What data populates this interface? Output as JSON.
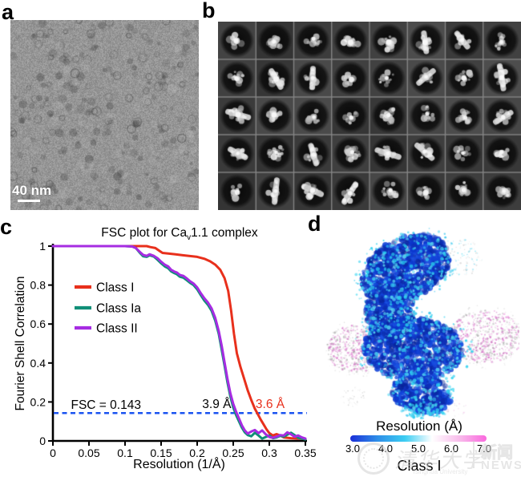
{
  "figure_labels": {
    "a": "a",
    "b": "b",
    "c": "c",
    "d": "d"
  },
  "panel_a": {
    "scale_bar_label": "40 nm"
  },
  "panel_b": {
    "rows": 5,
    "cols": 8
  },
  "panel_d": {
    "colorbar_title": "Resolution (Å)",
    "colorbar_ticks": [
      "3.0",
      "4.0",
      "5.0",
      "6.0",
      "7.0"
    ],
    "colorbar_colors": [
      "#1b2fd8",
      "#2e8ee8",
      "#3ccdf2",
      "#ffffff",
      "#f8bceb",
      "#fa68de"
    ],
    "class_label": "Class I"
  },
  "watermark": {
    "university": "清华大学",
    "university_en": "Tsinghua University",
    "news_cn": "新闻",
    "news_en": "NEWS"
  },
  "chart_data": {
    "type": "line",
    "title_parts": {
      "pre": "FSC plot for Ca",
      "sub": "v",
      "post": "1.1 complex"
    },
    "xlabel": "Resolution (1/Å)",
    "ylabel": "Fourier Shell Correlation",
    "xlim": [
      0,
      0.35
    ],
    "ylim": [
      0,
      1
    ],
    "xticks": [
      0,
      0.05,
      0.1,
      0.15,
      0.2,
      0.25,
      0.3,
      0.35
    ],
    "xtick_labels": [
      "0",
      "0.05",
      "0.1",
      "0.15",
      "0.2",
      "0.25",
      "0.3",
      "0.35"
    ],
    "yticks": [
      0,
      0.2,
      0.4,
      0.6,
      0.8,
      1
    ],
    "ytick_labels": [
      "0",
      "0.2",
      "0.4",
      "0.6",
      "0.8",
      "1"
    ],
    "grid": false,
    "legend_position": "upper-left-inside",
    "threshold": {
      "label": "FSC = 0.143",
      "value": 0.143,
      "color": "#1a53f0",
      "style": "dashed",
      "label_x": 0.025,
      "label_y": 0.165
    },
    "annotations": [
      {
        "text": "3.9 Å",
        "color": "#000000",
        "x": 0.207,
        "y": 0.168
      },
      {
        "text": "3.6 Å",
        "color": "#e8301c",
        "x": 0.281,
        "y": 0.168
      }
    ],
    "series": [
      {
        "name": "Class I",
        "color": "#e8301c",
        "points": [
          [
            0,
            1
          ],
          [
            0.02,
            1
          ],
          [
            0.04,
            1
          ],
          [
            0.06,
            1
          ],
          [
            0.08,
            1
          ],
          [
            0.1,
            1
          ],
          [
            0.12,
            1
          ],
          [
            0.13,
            1
          ],
          [
            0.135,
            0.995
          ],
          [
            0.142,
            0.99
          ],
          [
            0.148,
            0.975
          ],
          [
            0.152,
            0.965
          ],
          [
            0.16,
            0.962
          ],
          [
            0.17,
            0.958
          ],
          [
            0.18,
            0.953
          ],
          [
            0.19,
            0.949
          ],
          [
            0.2,
            0.945
          ],
          [
            0.21,
            0.935
          ],
          [
            0.218,
            0.922
          ],
          [
            0.225,
            0.905
          ],
          [
            0.232,
            0.878
          ],
          [
            0.238,
            0.835
          ],
          [
            0.243,
            0.77
          ],
          [
            0.247,
            0.67
          ],
          [
            0.251,
            0.55
          ],
          [
            0.255,
            0.45
          ],
          [
            0.26,
            0.38
          ],
          [
            0.265,
            0.32
          ],
          [
            0.27,
            0.26
          ],
          [
            0.275,
            0.21
          ],
          [
            0.28,
            0.165
          ],
          [
            0.284,
            0.138
          ],
          [
            0.288,
            0.11
          ],
          [
            0.292,
            0.085
          ],
          [
            0.296,
            0.06
          ],
          [
            0.3,
            0.04
          ],
          [
            0.305,
            0.028
          ],
          [
            0.31,
            0.035
          ],
          [
            0.315,
            0.028
          ],
          [
            0.32,
            0.018
          ],
          [
            0.33,
            0.014
          ],
          [
            0.34,
            0.012
          ],
          [
            0.35,
            0.01
          ]
        ]
      },
      {
        "name": "Class Ia",
        "color": "#108f78",
        "points": [
          [
            0,
            1
          ],
          [
            0.02,
            1
          ],
          [
            0.04,
            1
          ],
          [
            0.06,
            1
          ],
          [
            0.08,
            1
          ],
          [
            0.1,
            1
          ],
          [
            0.11,
            0.998
          ],
          [
            0.115,
            0.99
          ],
          [
            0.12,
            0.968
          ],
          [
            0.125,
            0.948
          ],
          [
            0.13,
            0.945
          ],
          [
            0.134,
            0.953
          ],
          [
            0.14,
            0.946
          ],
          [
            0.145,
            0.93
          ],
          [
            0.15,
            0.912
          ],
          [
            0.155,
            0.896
          ],
          [
            0.16,
            0.886
          ],
          [
            0.164,
            0.87
          ],
          [
            0.168,
            0.862
          ],
          [
            0.172,
            0.855
          ],
          [
            0.176,
            0.843
          ],
          [
            0.181,
            0.838
          ],
          [
            0.186,
            0.824
          ],
          [
            0.19,
            0.812
          ],
          [
            0.195,
            0.8
          ],
          [
            0.2,
            0.778
          ],
          [
            0.205,
            0.748
          ],
          [
            0.21,
            0.72
          ],
          [
            0.215,
            0.698
          ],
          [
            0.22,
            0.668
          ],
          [
            0.225,
            0.618
          ],
          [
            0.23,
            0.548
          ],
          [
            0.234,
            0.468
          ],
          [
            0.238,
            0.385
          ],
          [
            0.242,
            0.3
          ],
          [
            0.246,
            0.228
          ],
          [
            0.25,
            0.172
          ],
          [
            0.254,
            0.132
          ],
          [
            0.258,
            0.1
          ],
          [
            0.262,
            0.068
          ],
          [
            0.266,
            0.044
          ],
          [
            0.27,
            0.03
          ],
          [
            0.275,
            0.024
          ],
          [
            0.28,
            0.042
          ],
          [
            0.285,
            0.028
          ],
          [
            0.29,
            0.012
          ],
          [
            0.295,
            0.02
          ],
          [
            0.3,
            0.028
          ],
          [
            0.305,
            0.014
          ],
          [
            0.31,
            0.018
          ],
          [
            0.315,
            0.026
          ],
          [
            0.32,
            0.022
          ],
          [
            0.325,
            0.032
          ],
          [
            0.33,
            0.042
          ],
          [
            0.335,
            0.03
          ],
          [
            0.34,
            0.016
          ],
          [
            0.345,
            0.012
          ],
          [
            0.35,
            0.008
          ]
        ]
      },
      {
        "name": "Class II",
        "color": "#a62ce2",
        "points": [
          [
            0,
            1
          ],
          [
            0.02,
            1
          ],
          [
            0.04,
            1
          ],
          [
            0.06,
            1
          ],
          [
            0.08,
            1
          ],
          [
            0.1,
            1
          ],
          [
            0.11,
            0.998
          ],
          [
            0.115,
            0.99
          ],
          [
            0.12,
            0.972
          ],
          [
            0.125,
            0.955
          ],
          [
            0.13,
            0.95
          ],
          [
            0.134,
            0.958
          ],
          [
            0.14,
            0.95
          ],
          [
            0.145,
            0.938
          ],
          [
            0.15,
            0.92
          ],
          [
            0.155,
            0.905
          ],
          [
            0.16,
            0.895
          ],
          [
            0.164,
            0.878
          ],
          [
            0.168,
            0.87
          ],
          [
            0.172,
            0.864
          ],
          [
            0.176,
            0.852
          ],
          [
            0.181,
            0.847
          ],
          [
            0.186,
            0.833
          ],
          [
            0.19,
            0.82
          ],
          [
            0.195,
            0.808
          ],
          [
            0.2,
            0.788
          ],
          [
            0.205,
            0.758
          ],
          [
            0.21,
            0.732
          ],
          [
            0.215,
            0.71
          ],
          [
            0.22,
            0.68
          ],
          [
            0.225,
            0.632
          ],
          [
            0.23,
            0.562
          ],
          [
            0.234,
            0.488
          ],
          [
            0.238,
            0.402
          ],
          [
            0.242,
            0.318
          ],
          [
            0.246,
            0.245
          ],
          [
            0.25,
            0.19
          ],
          [
            0.254,
            0.15
          ],
          [
            0.258,
            0.115
          ],
          [
            0.262,
            0.08
          ],
          [
            0.266,
            0.054
          ],
          [
            0.27,
            0.038
          ],
          [
            0.275,
            0.048
          ],
          [
            0.28,
            0.056
          ],
          [
            0.285,
            0.04
          ],
          [
            0.29,
            0.054
          ],
          [
            0.295,
            0.034
          ],
          [
            0.3,
            0.02
          ],
          [
            0.305,
            0.016
          ],
          [
            0.31,
            0.022
          ],
          [
            0.315,
            0.03
          ],
          [
            0.32,
            0.028
          ],
          [
            0.325,
            0.044
          ],
          [
            0.33,
            0.034
          ],
          [
            0.335,
            0.022
          ],
          [
            0.34,
            0.028
          ],
          [
            0.345,
            0.018
          ],
          [
            0.35,
            0.012
          ]
        ]
      }
    ]
  }
}
